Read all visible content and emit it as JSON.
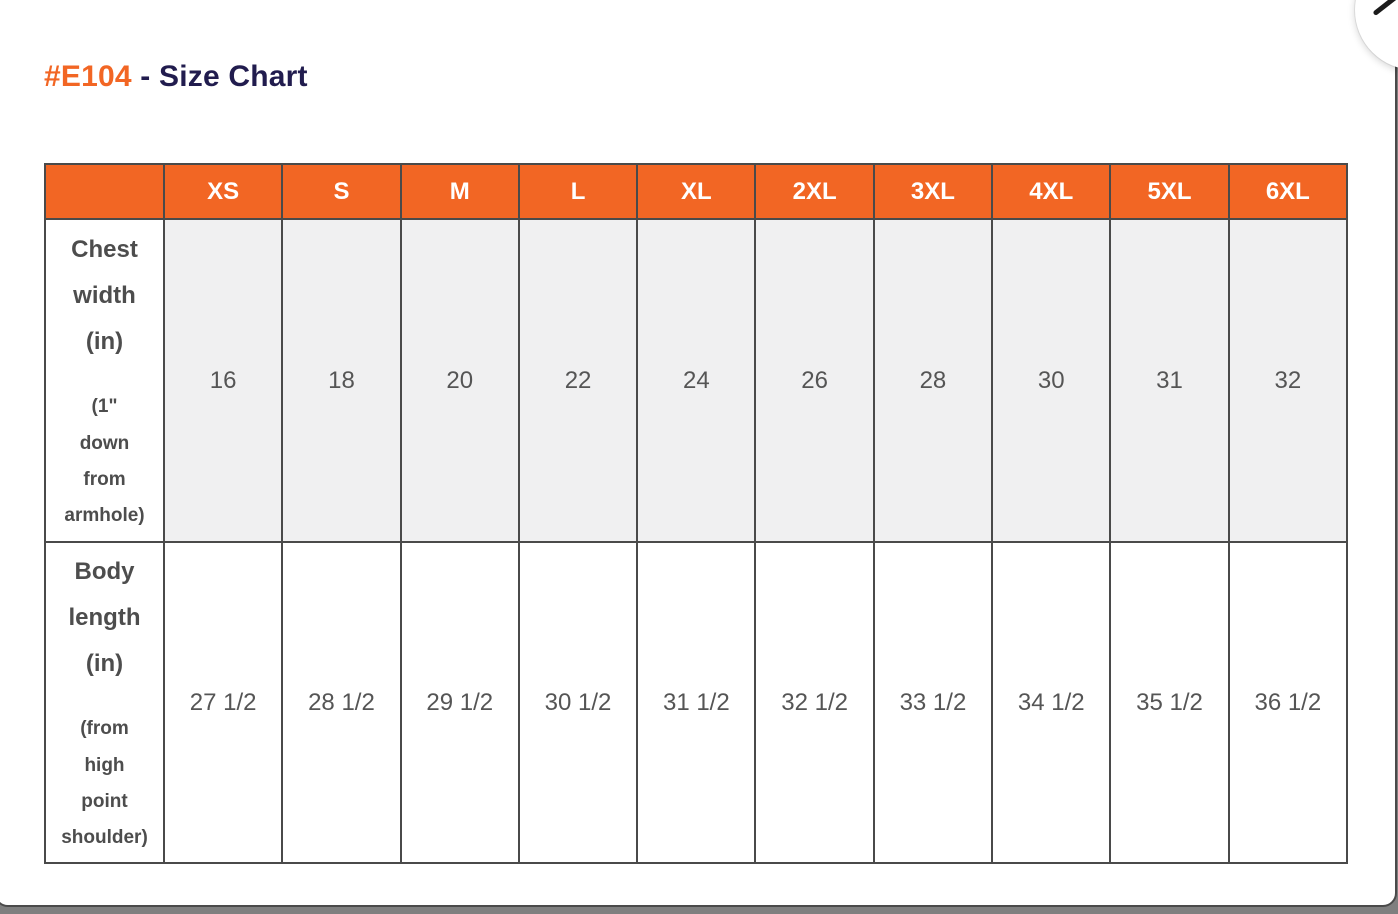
{
  "header": {
    "product_code": "#E104",
    "title_rest": "- Size Chart"
  },
  "colors": {
    "accent_orange": "#F26624",
    "title_navy": "#211C4E",
    "table_border": "#4A4A4A",
    "alt_row_background": "#F0F0F1",
    "cell_text": "#555555",
    "backdrop_gray": "#7F7F7F"
  },
  "close_button": {
    "icon": "close-icon"
  },
  "chart_data": {
    "type": "table",
    "title": "#E104 - Size Chart",
    "column_headers": [
      "XS",
      "S",
      "M",
      "L",
      "XL",
      "2XL",
      "3XL",
      "4XL",
      "5XL",
      "6XL"
    ],
    "rows": [
      {
        "label_main": "Chest\nwidth\n(in)",
        "label_note": "(1\"\ndown\nfrom\narmhole)",
        "label_flat": "Chest width (in) (1\" down from armhole)",
        "values": [
          "16",
          "18",
          "20",
          "22",
          "24",
          "26",
          "28",
          "30",
          "31",
          "32"
        ]
      },
      {
        "label_main": "Body\nlength\n(in)",
        "label_note": "(from\nhigh\npoint\nshoulder)",
        "label_flat": "Body length (in) (from high point shoulder)",
        "values": [
          "27 1/2",
          "28 1/2",
          "29 1/2",
          "30 1/2",
          "31 1/2",
          "32 1/2",
          "33 1/2",
          "34 1/2",
          "35 1/2",
          "36 1/2"
        ]
      }
    ]
  }
}
